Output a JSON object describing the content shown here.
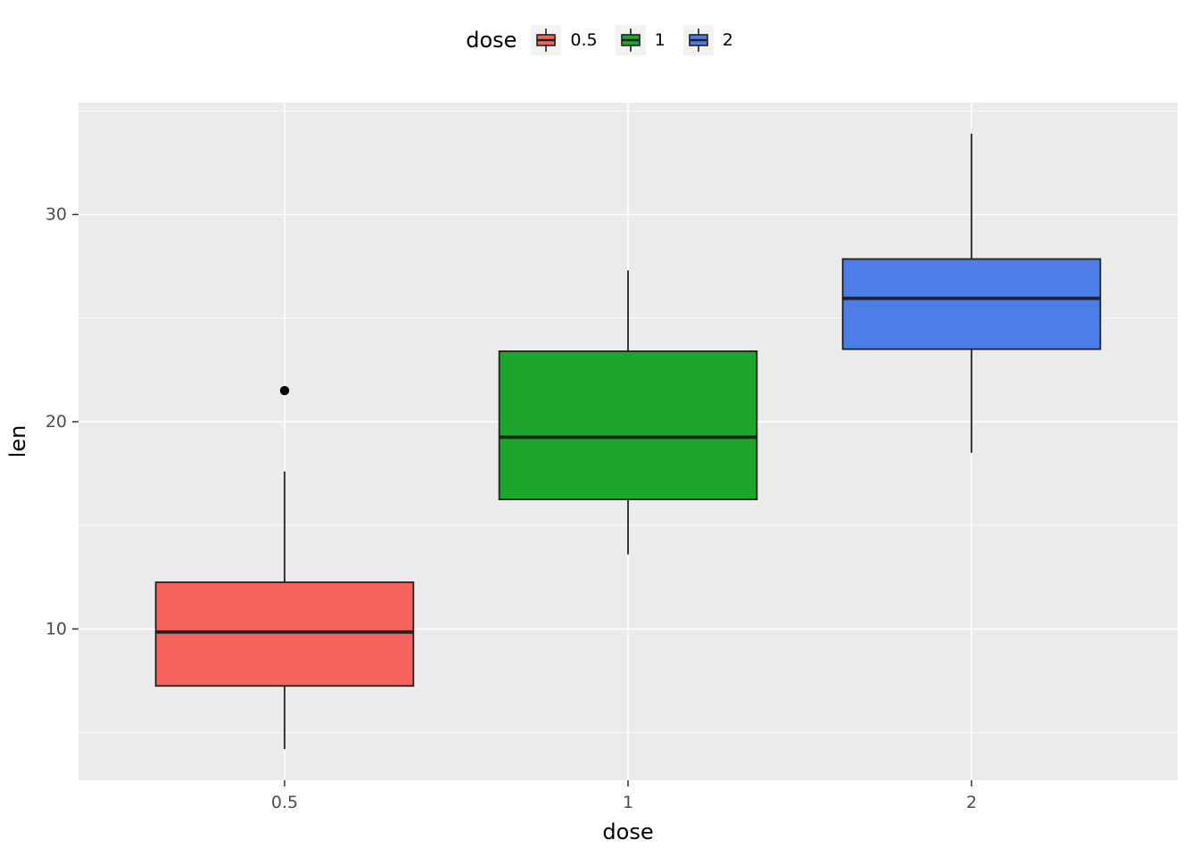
{
  "legend": {
    "title": "dose",
    "items": [
      {
        "label": "0.5",
        "color": "#F4635C"
      },
      {
        "label": "1",
        "color": "#1CA62C"
      },
      {
        "label": "2",
        "color": "#4D7EE8"
      }
    ]
  },
  "chart_data": {
    "type": "boxplot",
    "title": "",
    "xlabel": "dose",
    "ylabel": "len",
    "categories": [
      "0.5",
      "1",
      "2"
    ],
    "y_ticks": [
      10,
      20,
      30
    ],
    "ylim": [
      2.7,
      35.4
    ],
    "box_width": 0.75,
    "legend_position": "top",
    "grid": "on",
    "groups": [
      {
        "category": "0.5",
        "color": "#F4635C",
        "whisker_low": 4.2,
        "q1": 7.25,
        "median": 9.85,
        "q3": 12.25,
        "whisker_high": 17.6,
        "outliers": [
          21.5
        ]
      },
      {
        "category": "1",
        "color": "#1CA62C",
        "whisker_low": 13.6,
        "q1": 16.25,
        "median": 19.25,
        "q3": 23.4,
        "whisker_high": 27.3,
        "outliers": []
      },
      {
        "category": "2",
        "color": "#4D7EE8",
        "whisker_low": 18.5,
        "q1": 23.5,
        "median": 25.95,
        "q3": 27.85,
        "whisker_high": 33.9,
        "outliers": []
      }
    ],
    "style": {
      "panel_bg": "#EBEBEB",
      "grid_color": "#FFFFFF",
      "box_stroke": "#222222",
      "tick_color": "#333333",
      "axis_text_color": "#4D4D4D",
      "axis_title_color": "#000000",
      "outlier_color": "#000000"
    },
    "layout": {
      "panel": {
        "l": 88,
        "t": 115,
        "r": 1320,
        "b": 875
      }
    }
  }
}
